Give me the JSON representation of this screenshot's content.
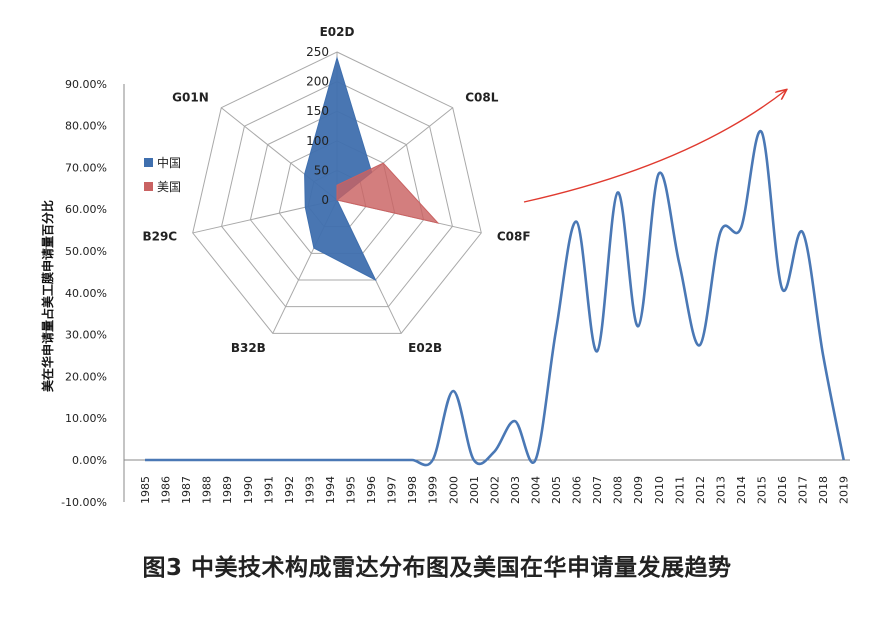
{
  "caption": "图3 中美技术构成雷达分布图及美国在华申请量发展趋势",
  "chart_data": [
    {
      "type": "line",
      "ylabel": "美在华申请量占美工膜申请量百分比",
      "ylim": [
        -0.1,
        0.9
      ],
      "y_ticks": [
        "90.00%",
        "80.00%",
        "70.00%",
        "60.00%",
        "50.00%",
        "40.00%",
        "30.00%",
        "20.00%",
        "10.00%",
        "0.00%",
        "-10.00%"
      ],
      "y_tick_values": [
        0.9,
        0.8,
        0.7,
        0.6,
        0.5,
        0.4,
        0.3,
        0.2,
        0.1,
        0.0,
        -0.1
      ],
      "categories": [
        "1985",
        "1986",
        "1987",
        "1988",
        "1989",
        "1990",
        "1991",
        "1992",
        "1993",
        "1994",
        "1995",
        "1996",
        "1997",
        "1998",
        "1999",
        "2000",
        "2001",
        "2002",
        "2003",
        "2004",
        "2005",
        "2006",
        "2007",
        "2008",
        "2009",
        "2010",
        "2011",
        "2012",
        "2013",
        "2014",
        "2015",
        "2016",
        "2017",
        "2018",
        "2019"
      ],
      "values": [
        0,
        0,
        0,
        0,
        0,
        0,
        0,
        0,
        0,
        0,
        0,
        0,
        0,
        0,
        0,
        0.165,
        0,
        0.02,
        0.093,
        0,
        0.31,
        0.57,
        0.26,
        0.64,
        0.32,
        0.685,
        0.47,
        0.275,
        0.545,
        0.555,
        0.785,
        0.41,
        0.545,
        0.25,
        0
      ],
      "line_color": "#4a78b5",
      "trend_arrow_color": "#e03a2f",
      "grid": false
    },
    {
      "type": "radar",
      "axes": [
        "E02D",
        "C08L",
        "C08F",
        "E02B",
        "B32B",
        "B29C",
        "G01N"
      ],
      "r_ticks": [
        "0",
        "50",
        "100",
        "150",
        "200",
        "250"
      ],
      "r_max": 250,
      "series": [
        {
          "name": "中国",
          "color": "#3f6fae",
          "values": [
            240,
            75,
            0,
            150,
            90,
            55,
            70
          ]
        },
        {
          "name": "美国",
          "color": "#c96262",
          "values": [
            25,
            100,
            175,
            0,
            0,
            0,
            0
          ]
        }
      ],
      "legend_position": "left"
    }
  ]
}
